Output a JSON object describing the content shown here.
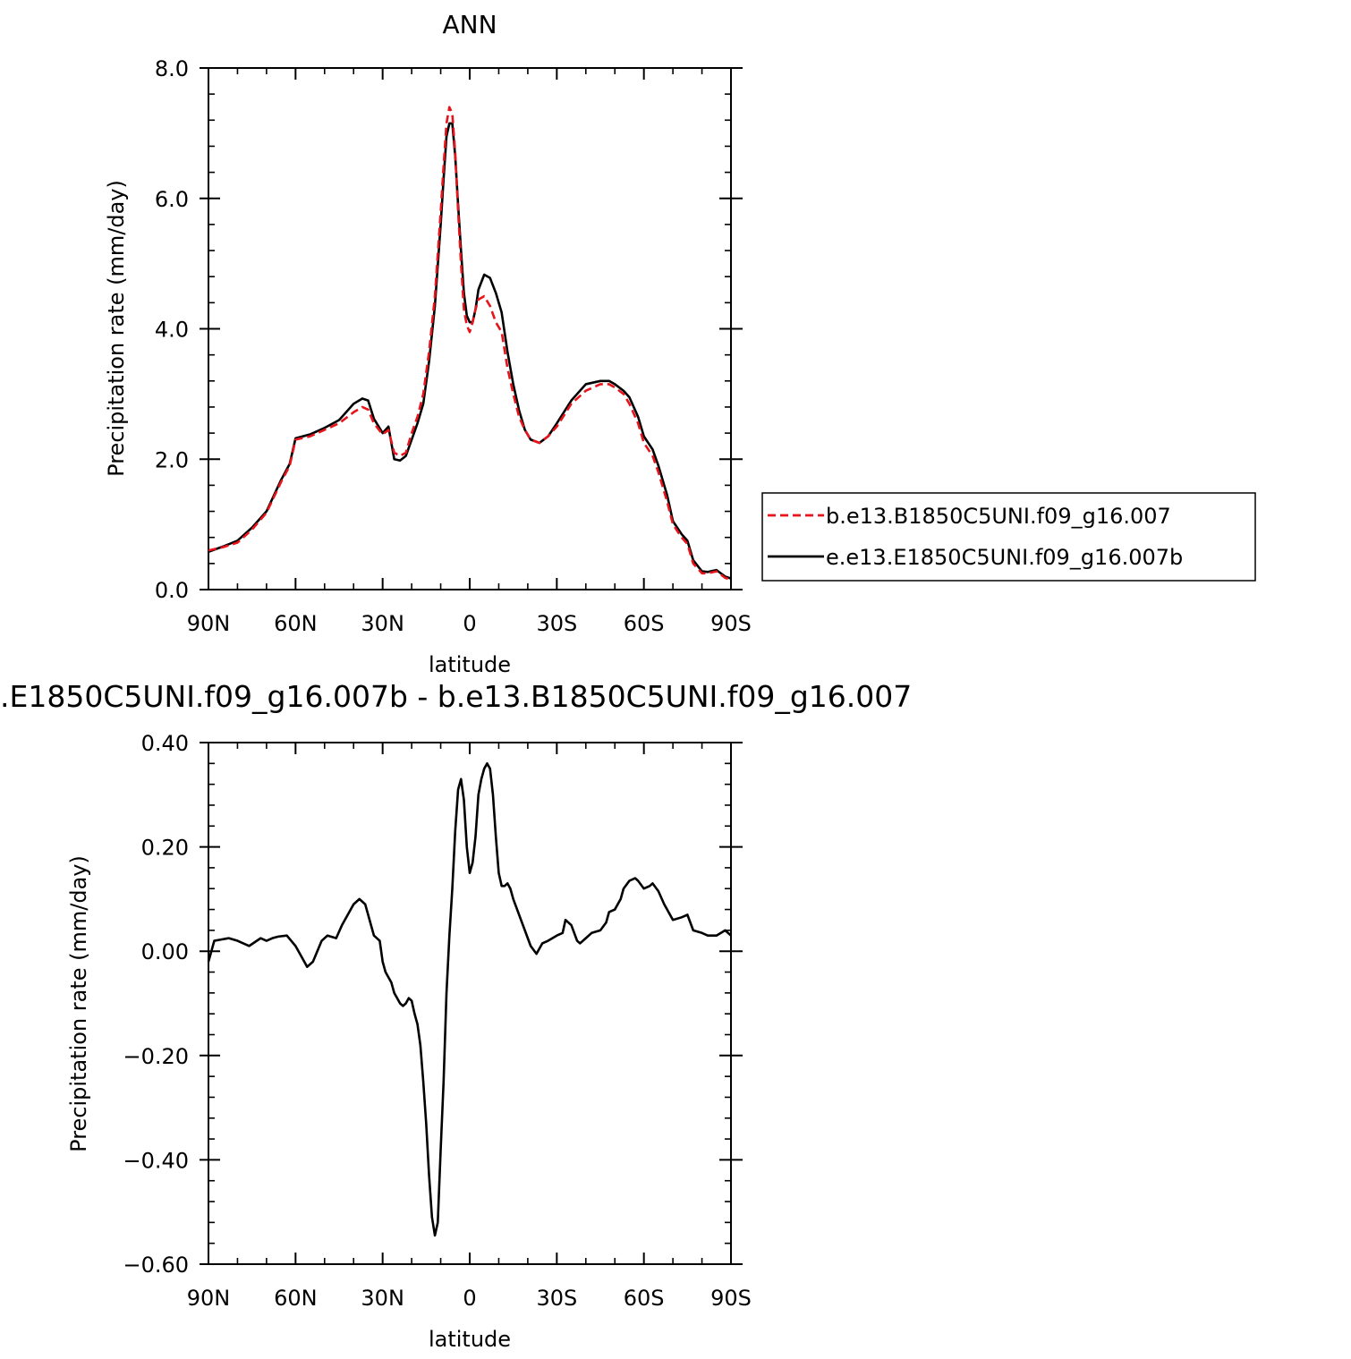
{
  "charts": {
    "top": {
      "title": "ANN",
      "ylabel": "Precipitation rate (mm/day)",
      "xlabel": "latitude",
      "x_tick_labels": [
        "90N",
        "60N",
        "30N",
        "0",
        "30S",
        "60S",
        "90S"
      ],
      "y_tick_labels": [
        "0.0",
        "2.0",
        "4.0",
        "6.0",
        "8.0"
      ]
    },
    "bottom": {
      "title": ".E1850C5UNI.f09_g16.007b - b.e13.B1850C5UNI.f09_g16.007",
      "ylabel": "Precipitation rate (mm/day)",
      "xlabel": "latitude",
      "x_tick_labels": [
        "90N",
        "60N",
        "30N",
        "0",
        "30S",
        "60S",
        "90S"
      ],
      "y_tick_labels": [
        "−0.60",
        "−0.40",
        "−0.20",
        "0.00",
        "0.20",
        "0.40"
      ]
    }
  },
  "legend": {
    "entries": [
      {
        "label": "b.e13.B1850C5UNI.f09_g16.007",
        "color": "#e8141b",
        "dash": true
      },
      {
        "label": "e.e13.E1850C5UNI.f09_g16.007b",
        "color": "#000000",
        "dash": false
      }
    ]
  },
  "chart_data": [
    {
      "type": "line",
      "title": "ANN",
      "xlabel": "latitude",
      "ylabel": "Precipitation rate (mm/day)",
      "xlim": [
        90,
        -90
      ],
      "ylim": [
        0,
        8
      ],
      "x_ticks": [
        90,
        60,
        30,
        0,
        -30,
        -60,
        -90
      ],
      "y_ticks": [
        0,
        2,
        4,
        6,
        8
      ],
      "grid": false,
      "legend_position": "right",
      "series": [
        {
          "name": "b.e13.B1850C5UNI.f09_g16.007",
          "color": "#e8141b",
          "style": "dashed",
          "x": [
            90,
            85,
            80,
            75,
            70,
            65,
            62,
            60,
            55,
            50,
            45,
            40,
            37,
            35,
            33,
            30,
            28,
            26,
            24,
            22,
            20,
            18,
            16,
            14,
            12,
            10,
            9,
            8,
            7,
            6,
            5,
            4,
            3,
            2,
            1,
            0,
            -1,
            -2,
            -3,
            -5,
            -7,
            -9,
            -11,
            -13,
            -15,
            -17,
            -19,
            -21,
            -24,
            -27,
            -30,
            -35,
            -40,
            -45,
            -48,
            -50,
            -53,
            -55,
            -58,
            -60,
            -63,
            -65,
            -68,
            -70,
            -73,
            -75,
            -77,
            -80,
            -82,
            -85,
            -88,
            -90
          ],
          "y": [
            0.6,
            0.65,
            0.72,
            0.92,
            1.18,
            1.65,
            1.9,
            2.3,
            2.35,
            2.45,
            2.55,
            2.72,
            2.8,
            2.76,
            2.55,
            2.38,
            2.45,
            2.1,
            2.05,
            2.1,
            2.4,
            2.65,
            3.0,
            3.65,
            4.5,
            5.8,
            6.5,
            7.15,
            7.4,
            7.3,
            6.7,
            5.8,
            5.0,
            4.3,
            4.05,
            3.95,
            4.1,
            4.3,
            4.45,
            4.5,
            4.35,
            4.1,
            3.95,
            3.4,
            3.0,
            2.65,
            2.45,
            2.3,
            2.25,
            2.35,
            2.5,
            2.85,
            3.05,
            3.15,
            3.15,
            3.1,
            3.0,
            2.85,
            2.55,
            2.25,
            2.05,
            1.8,
            1.35,
            1.0,
            0.8,
            0.7,
            0.4,
            0.25,
            0.25,
            0.28,
            0.18,
            0.15
          ]
        },
        {
          "name": "e.e13.E1850C5UNI.f09_g16.007b",
          "color": "#000000",
          "style": "solid",
          "x": [
            90,
            85,
            80,
            75,
            70,
            65,
            62,
            60,
            55,
            50,
            45,
            40,
            37,
            35,
            33,
            30,
            28,
            26,
            24,
            22,
            20,
            18,
            16,
            14,
            12,
            10,
            9,
            8,
            7,
            6,
            5,
            4,
            3,
            2,
            1,
            0,
            -1,
            -2,
            -3,
            -5,
            -7,
            -9,
            -11,
            -13,
            -15,
            -17,
            -19,
            -21,
            -24,
            -27,
            -30,
            -35,
            -40,
            -45,
            -48,
            -50,
            -53,
            -55,
            -58,
            -60,
            -63,
            -65,
            -68,
            -70,
            -73,
            -75,
            -77,
            -80,
            -82,
            -85,
            -88,
            -90
          ],
          "y": [
            0.58,
            0.66,
            0.75,
            0.95,
            1.2,
            1.68,
            1.93,
            2.32,
            2.38,
            2.48,
            2.6,
            2.85,
            2.93,
            2.9,
            2.62,
            2.4,
            2.5,
            2.0,
            1.98,
            2.05,
            2.3,
            2.55,
            2.85,
            3.5,
            4.35,
            5.6,
            6.3,
            6.95,
            7.15,
            7.15,
            6.65,
            5.9,
            5.2,
            4.55,
            4.2,
            4.1,
            4.1,
            4.3,
            4.6,
            4.83,
            4.78,
            4.55,
            4.25,
            3.65,
            3.15,
            2.75,
            2.45,
            2.3,
            2.25,
            2.35,
            2.55,
            2.9,
            3.15,
            3.2,
            3.2,
            3.15,
            3.05,
            2.95,
            2.65,
            2.35,
            2.15,
            1.9,
            1.45,
            1.05,
            0.85,
            0.75,
            0.45,
            0.28,
            0.27,
            0.3,
            0.2,
            0.17
          ]
        }
      ]
    },
    {
      "type": "line",
      "title": ".E1850C5UNI.f09_g16.007b - b.e13.B1850C5UNI.f09_g16.007",
      "xlabel": "latitude",
      "ylabel": "Precipitation rate (mm/day)",
      "xlim": [
        90,
        -90
      ],
      "ylim": [
        -0.6,
        0.4
      ],
      "x_ticks": [
        90,
        60,
        30,
        0,
        -30,
        -60,
        -90
      ],
      "y_ticks": [
        -0.6,
        -0.4,
        -0.2,
        0,
        0.2,
        0.4
      ],
      "grid": false,
      "series": [
        {
          "color": "#000000",
          "style": "solid",
          "x": [
            90,
            88,
            86,
            83,
            80,
            76,
            72,
            70,
            68,
            66,
            63,
            60,
            58,
            56,
            54,
            51,
            49,
            46,
            44,
            42,
            40,
            38,
            36,
            35,
            33,
            31,
            30,
            29,
            28,
            27,
            26,
            25,
            24,
            23,
            22,
            21,
            20,
            19,
            18,
            17,
            16,
            15,
            14,
            13,
            12,
            11,
            10.5,
            10,
            9,
            8,
            7,
            6,
            5,
            4,
            3,
            2,
            1,
            0,
            -1,
            -2,
            -3,
            -4,
            -5,
            -6,
            -7,
            -8,
            -9,
            -10,
            -11,
            -12,
            -13,
            -14,
            -15,
            -17,
            -19,
            -21,
            -23,
            -25,
            -27,
            -30,
            -32,
            -33,
            -35,
            -37,
            -38,
            -40,
            -42,
            -45,
            -47,
            -48,
            -50,
            -52,
            -53,
            -55,
            -57,
            -58,
            -60,
            -62,
            -63,
            -65,
            -67,
            -70,
            -73,
            -75,
            -77,
            -80,
            -82,
            -85,
            -88,
            -90
          ],
          "y": [
            -0.02,
            0.02,
            0.022,
            0.025,
            0.02,
            0.01,
            0.025,
            0.02,
            0.025,
            0.028,
            0.03,
            0.01,
            -0.01,
            -0.03,
            -0.02,
            0.02,
            0.03,
            0.025,
            0.05,
            0.07,
            0.09,
            0.1,
            0.09,
            0.07,
            0.03,
            0.02,
            -0.02,
            -0.04,
            -0.05,
            -0.06,
            -0.08,
            -0.09,
            -0.1,
            -0.105,
            -0.1,
            -0.09,
            -0.095,
            -0.12,
            -0.14,
            -0.18,
            -0.25,
            -0.33,
            -0.43,
            -0.51,
            -0.545,
            -0.52,
            -0.45,
            -0.38,
            -0.25,
            -0.08,
            0.03,
            0.12,
            0.23,
            0.31,
            0.33,
            0.29,
            0.2,
            0.15,
            0.17,
            0.22,
            0.3,
            0.33,
            0.35,
            0.36,
            0.35,
            0.3,
            0.22,
            0.15,
            0.125,
            0.125,
            0.13,
            0.12,
            0.1,
            0.07,
            0.04,
            0.01,
            -0.005,
            0.015,
            0.02,
            0.03,
            0.035,
            0.06,
            0.05,
            0.02,
            0.015,
            0.025,
            0.035,
            0.04,
            0.055,
            0.075,
            0.08,
            0.1,
            0.12,
            0.135,
            0.14,
            0.135,
            0.12,
            0.125,
            0.13,
            0.115,
            0.09,
            0.06,
            0.065,
            0.07,
            0.04,
            0.035,
            0.03,
            0.03,
            0.04,
            0.03
          ]
        }
      ]
    }
  ]
}
